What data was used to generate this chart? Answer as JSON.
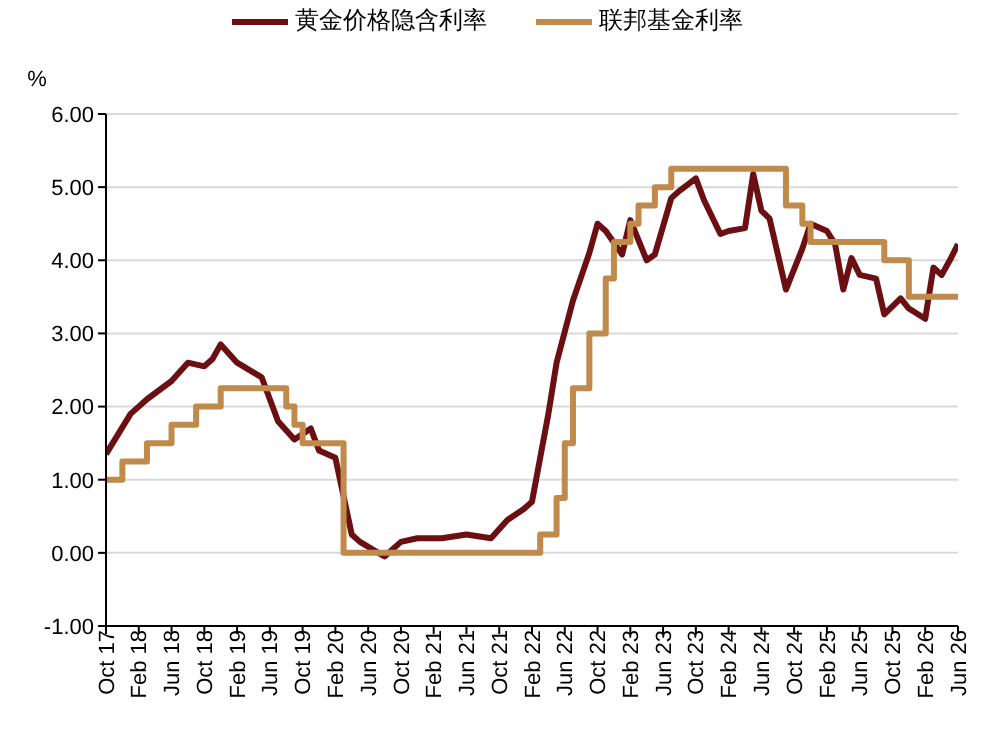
{
  "chart_data": {
    "type": "line",
    "ylabel": "%",
    "xlim": [
      "2017-10",
      "2026-06"
    ],
    "xticks": [
      {
        "value": "2017-10",
        "label": "Oct 17"
      },
      {
        "value": "2018-02",
        "label": "Feb 18"
      },
      {
        "value": "2018-06",
        "label": "Jun 18"
      },
      {
        "value": "2018-10",
        "label": "Oct 18"
      },
      {
        "value": "2019-02",
        "label": "Feb 19"
      },
      {
        "value": "2019-06",
        "label": "Jun 19"
      },
      {
        "value": "2019-10",
        "label": "Oct 19"
      },
      {
        "value": "2020-02",
        "label": "Feb 20"
      },
      {
        "value": "2020-06",
        "label": "Jun 20"
      },
      {
        "value": "2020-10",
        "label": "Oct 20"
      },
      {
        "value": "2021-02",
        "label": "Feb 21"
      },
      {
        "value": "2021-06",
        "label": "Jun 21"
      },
      {
        "value": "2021-10",
        "label": "Oct 21"
      },
      {
        "value": "2022-02",
        "label": "Feb 22"
      },
      {
        "value": "2022-06",
        "label": "Jun 22"
      },
      {
        "value": "2022-10",
        "label": "Oct 22"
      },
      {
        "value": "2023-02",
        "label": "Feb 23"
      },
      {
        "value": "2023-06",
        "label": "Jun 23"
      },
      {
        "value": "2023-10",
        "label": "Oct 23"
      },
      {
        "value": "2024-02",
        "label": "Feb 24"
      },
      {
        "value": "2024-06",
        "label": "Jun 24"
      },
      {
        "value": "2024-10",
        "label": "Oct 24"
      },
      {
        "value": "2025-02",
        "label": "Feb 25"
      },
      {
        "value": "2025-06",
        "label": "Jun 25"
      },
      {
        "value": "2025-10",
        "label": "Oct 25"
      },
      {
        "value": "2026-02",
        "label": "Feb 26"
      },
      {
        "value": "2026-06",
        "label": "Jun 26"
      }
    ],
    "ylim": [
      -1,
      6
    ],
    "yticks": [
      {
        "value": -1,
        "label": "-1.00"
      },
      {
        "value": 0,
        "label": "0.00"
      },
      {
        "value": 1,
        "label": "1.00"
      },
      {
        "value": 2,
        "label": "2.00"
      },
      {
        "value": 3,
        "label": "3.00"
      },
      {
        "value": 4,
        "label": "4.00"
      },
      {
        "value": 5,
        "label": "5.00"
      },
      {
        "value": 6,
        "label": "6.00"
      }
    ],
    "grid": "y",
    "legend": "top",
    "marker": "none",
    "series": [
      {
        "name": "黄金价格隐含利率",
        "type": "line",
        "color": "#6b0f12",
        "x": [
          "2017-10",
          "2018-01",
          "2018-03",
          "2018-06",
          "2018-08",
          "2018-10",
          "2018-11",
          "2018-12",
          "2019-02",
          "2019-05",
          "2019-07",
          "2019-09",
          "2019-11",
          "2019-12",
          "2020-02",
          "2020-04",
          "2020-05",
          "2020-08",
          "2020-10",
          "2020-12",
          "2021-03",
          "2021-06",
          "2021-09",
          "2021-11",
          "2022-01",
          "2022-02",
          "2022-03",
          "2022-04",
          "2022-05",
          "2022-07",
          "2022-09",
          "2022-10",
          "2022-11",
          "2023-01",
          "2023-02",
          "2023-04",
          "2023-05",
          "2023-07",
          "2023-08",
          "2023-10",
          "2023-11",
          "2024-01",
          "2024-02",
          "2024-04",
          "2024-05",
          "2024-06",
          "2024-07",
          "2024-09",
          "2024-11",
          "2024-12",
          "2025-02",
          "2025-03",
          "2025-04",
          "2025-05",
          "2025-06",
          "2025-08",
          "2025-09",
          "2025-11",
          "2025-12",
          "2026-02",
          "2026-03",
          "2026-04",
          "2026-05",
          "2026-06"
        ],
        "values": [
          1.35,
          1.9,
          2.1,
          2.35,
          2.6,
          2.55,
          2.65,
          2.85,
          2.6,
          2.4,
          1.8,
          1.55,
          1.7,
          1.4,
          1.3,
          0.25,
          0.15,
          -0.05,
          0.15,
          0.2,
          0.2,
          0.25,
          0.2,
          0.45,
          0.6,
          0.7,
          1.3,
          1.9,
          2.6,
          3.45,
          4.1,
          4.5,
          4.4,
          4.08,
          4.55,
          4.0,
          4.08,
          4.85,
          4.95,
          5.12,
          4.82,
          4.36,
          4.4,
          4.44,
          5.18,
          4.68,
          4.57,
          3.6,
          4.16,
          4.5,
          4.4,
          4.22,
          3.6,
          4.03,
          3.8,
          3.75,
          3.26,
          3.48,
          3.34,
          3.2,
          3.9,
          3.8,
          4.0,
          4.22
        ]
      },
      {
        "name": "联邦基金利率",
        "type": "step",
        "color": "#c08a4a",
        "x": [
          "2017-10",
          "2017-12",
          "2018-03",
          "2018-06",
          "2018-09",
          "2018-12",
          "2019-08",
          "2019-09",
          "2019-10",
          "2020-03",
          "2022-03",
          "2022-05",
          "2022-06",
          "2022-07",
          "2022-09",
          "2022-11",
          "2022-12",
          "2023-02",
          "2023-03",
          "2023-05",
          "2023-07",
          "2024-09",
          "2024-11",
          "2024-12",
          "2025-09",
          "2025-12",
          "2026-06"
        ],
        "values": [
          1.0,
          1.25,
          1.5,
          1.75,
          2.0,
          2.25,
          2.0,
          1.75,
          1.5,
          0,
          0.25,
          0.75,
          1.5,
          2.25,
          3.0,
          3.75,
          4.25,
          4.5,
          4.75,
          5.0,
          5.25,
          4.75,
          4.5,
          4.25,
          4.0,
          3.5,
          3.5
        ]
      }
    ]
  }
}
